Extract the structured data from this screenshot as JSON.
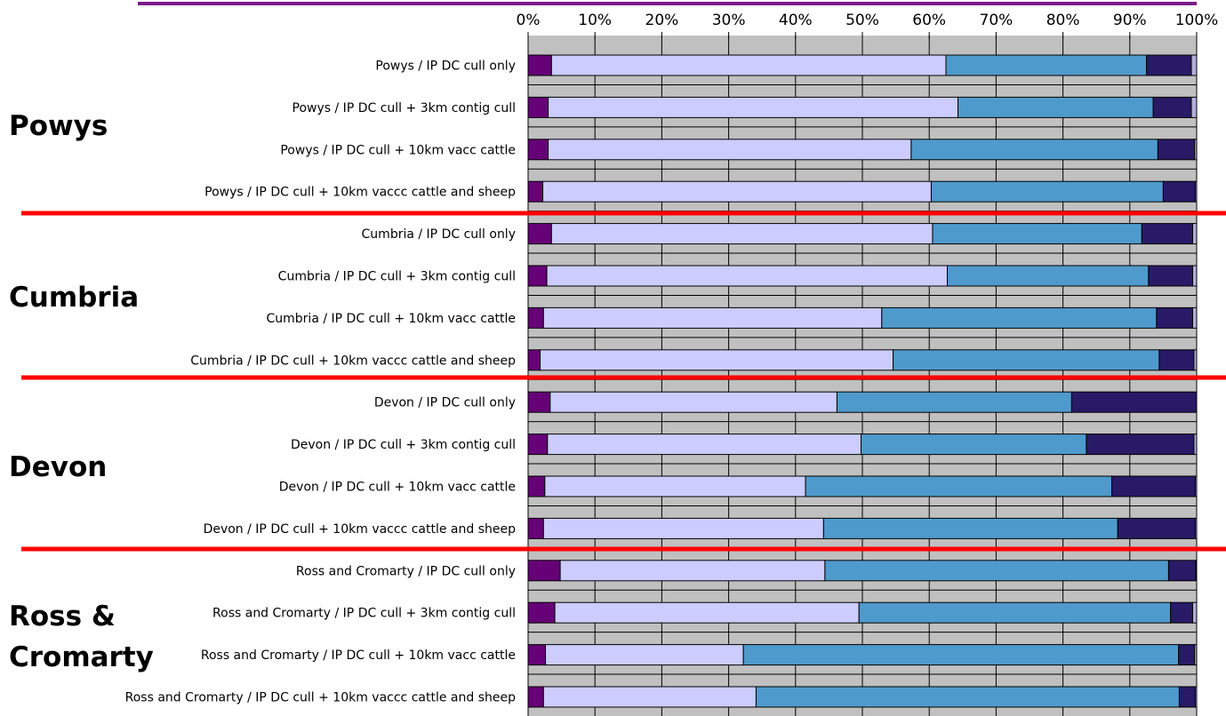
{
  "chart_data": {
    "type": "bar",
    "orientation": "horizontal",
    "stacked": true,
    "percent": true,
    "x_ticks": [
      "0%",
      "10%",
      "20%",
      "30%",
      "40%",
      "50%",
      "60%",
      "70%",
      "80%",
      "90%",
      "100%"
    ],
    "xlim": [
      0,
      100
    ],
    "x_axis_position": "top",
    "grid": true,
    "series_colors": [
      "#660077",
      "#ccccff",
      "#4f9acc",
      "#281a66",
      "#b0b0d8"
    ],
    "groups": [
      {
        "label": "Powys",
        "label_lines": [
          "Powys"
        ]
      },
      {
        "label": "Cumbria",
        "label_lines": [
          "Cumbria"
        ]
      },
      {
        "label": "Devon",
        "label_lines": [
          "Devon"
        ]
      },
      {
        "label": "Ross & Cromarty",
        "label_lines": [
          "Ross &",
          "Cromarty"
        ]
      }
    ],
    "rows": [
      {
        "group": 0,
        "label": "Powys  / IP DC cull only",
        "values": [
          3.5,
          59.0,
          30.0,
          6.7,
          0.8
        ]
      },
      {
        "group": 0,
        "label": "Powys  / IP DC cull + 3km contig cull",
        "values": [
          3.0,
          61.3,
          29.2,
          5.7,
          0.8
        ]
      },
      {
        "group": 0,
        "label": "Powys  / IP DC cull + 10km vacc cattle",
        "values": [
          3.0,
          54.3,
          36.9,
          5.5,
          0.3
        ]
      },
      {
        "group": 0,
        "label": "Powys  / IP DC cull + 10km vaccc cattle and sheep",
        "values": [
          2.2,
          58.1,
          34.7,
          4.8,
          0.2
        ]
      },
      {
        "group": 1,
        "label": "Cumbria  / IP DC cull only",
        "values": [
          3.5,
          57.0,
          31.3,
          7.6,
          0.6
        ]
      },
      {
        "group": 1,
        "label": "Cumbria  / IP DC cull + 3km contig cull",
        "values": [
          2.8,
          59.9,
          30.1,
          6.6,
          0.6
        ]
      },
      {
        "group": 1,
        "label": "Cumbria  / IP DC cull + 10km vacc cattle",
        "values": [
          2.3,
          50.6,
          41.1,
          5.4,
          0.6
        ]
      },
      {
        "group": 1,
        "label": "Cumbria  / IP DC cull + 10km vaccc cattle and sheep",
        "values": [
          1.8,
          52.8,
          39.8,
          5.2,
          0.4
        ]
      },
      {
        "group": 2,
        "label": "Devon  / IP DC cull only",
        "values": [
          3.3,
          42.9,
          35.1,
          18.7,
          0.0
        ]
      },
      {
        "group": 2,
        "label": "Devon  / IP DC cull + 3km contig cull",
        "values": [
          2.9,
          46.9,
          33.7,
          16.1,
          0.4
        ]
      },
      {
        "group": 2,
        "label": "Devon  / IP DC cull + 10km vacc cattle",
        "values": [
          2.5,
          39.0,
          45.8,
          12.5,
          0.2
        ]
      },
      {
        "group": 2,
        "label": "Devon  / IP DC cull + 10km vaccc cattle and sheep",
        "values": [
          2.3,
          41.9,
          44.0,
          11.6,
          0.2
        ]
      },
      {
        "group": 3,
        "label": "Ross and Cromarty  / IP DC cull only",
        "values": [
          4.8,
          39.6,
          51.4,
          4.1,
          0.1
        ]
      },
      {
        "group": 3,
        "label": "Ross and Cromarty  / IP DC cull + 3km contig cull",
        "values": [
          4.0,
          45.5,
          46.6,
          3.3,
          0.6
        ]
      },
      {
        "group": 3,
        "label": "Ross and Cromarty  / IP DC cull + 10km vacc cattle",
        "values": [
          2.6,
          29.6,
          65.1,
          2.4,
          0.3
        ]
      },
      {
        "group": 3,
        "label": "Ross and Cromarty  / IP DC cull + 10km vaccc cattle and sheep",
        "values": [
          2.3,
          31.8,
          63.3,
          2.4,
          0.2
        ]
      }
    ]
  }
}
